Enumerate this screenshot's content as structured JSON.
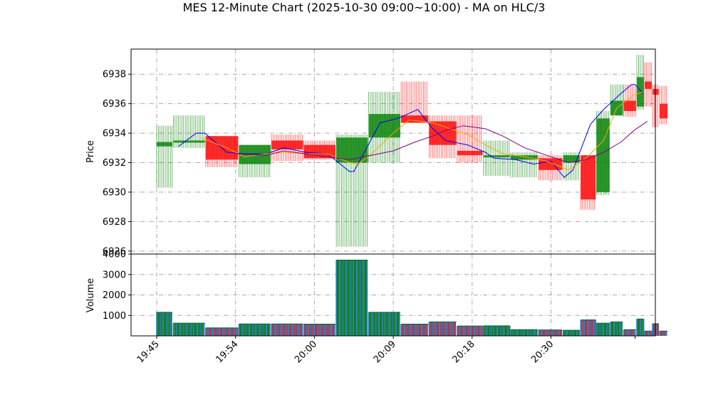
{
  "chart_data": {
    "type": "candlestick",
    "title": "MES 12-Minute Chart (2025-10-30 09:00~10:00) - MA on HLC/3",
    "price_panel": {
      "ylabel": "Price",
      "ylim": [
        6925.8,
        6939.7
      ],
      "yticks": [
        6926,
        6928,
        6930,
        6932,
        6934,
        6936,
        6938
      ],
      "grid": true
    },
    "volume_panel": {
      "ylabel": "Volume",
      "ylim": [
        0,
        4000
      ],
      "yticks": [
        1000,
        2000,
        3000,
        4000
      ],
      "grid": true
    },
    "x_ticks": [
      {
        "t": 0,
        "label": "19:45"
      },
      {
        "t": 9,
        "label": "19:54"
      },
      {
        "t": 18,
        "label": "20:00"
      },
      {
        "t": 27,
        "label": "20:09"
      },
      {
        "t": 36,
        "label": "20:18"
      },
      {
        "t": 45,
        "label": "20:30"
      }
    ],
    "xlim": [
      -3,
      57
    ],
    "up_color": "#008000",
    "down_color": "#ff0000",
    "ma_series": [
      {
        "color": "#0000ff",
        "values": [
          [
            2.5,
            6933.1
          ],
          [
            4.5,
            6934.0
          ],
          [
            5.5,
            6934.0
          ],
          [
            8,
            6932.7
          ],
          [
            10,
            6932.6
          ],
          [
            12.5,
            6932.6
          ],
          [
            14.5,
            6933.0
          ],
          [
            17,
            6932.7
          ],
          [
            19.5,
            6932.6
          ],
          [
            22,
            6931.4
          ],
          [
            22.5,
            6931.4
          ],
          [
            25.5,
            6934.7
          ],
          [
            27.5,
            6935.0
          ],
          [
            29.8,
            6935.6
          ],
          [
            31.5,
            6934.3
          ],
          [
            33,
            6933.5
          ],
          [
            35.5,
            6933.2
          ],
          [
            37.5,
            6932.7
          ],
          [
            38.5,
            6932.3
          ],
          [
            41,
            6932.2
          ],
          [
            43,
            6931.9
          ],
          [
            45,
            6932.1
          ],
          [
            46.5,
            6931.0
          ],
          [
            47.5,
            6931.5
          ],
          [
            49.5,
            6934.6
          ],
          [
            51,
            6935.6
          ],
          [
            53,
            6936.7
          ],
          [
            54.2,
            6937.3
          ],
          [
            54.6,
            6937.3
          ],
          [
            55.5,
            6936.7
          ]
        ]
      },
      {
        "color": "#ffa500",
        "values": [
          [
            5,
            6933.7
          ],
          [
            8,
            6933.0
          ],
          [
            10,
            6932.4
          ],
          [
            12.5,
            6932.6
          ],
          [
            14.5,
            6932.7
          ],
          [
            17,
            6932.6
          ],
          [
            19.5,
            6932.6
          ],
          [
            22,
            6932.0
          ],
          [
            23,
            6931.9
          ],
          [
            24.5,
            6932.6
          ],
          [
            27,
            6934.0
          ],
          [
            28.8,
            6934.9
          ],
          [
            31.5,
            6934.7
          ],
          [
            35.5,
            6933.9
          ],
          [
            37.5,
            6933.2
          ],
          [
            39.5,
            6932.6
          ],
          [
            42,
            6932.4
          ],
          [
            44.5,
            6932.1
          ],
          [
            47,
            6931.5
          ],
          [
            49,
            6932.3
          ],
          [
            51,
            6933.5
          ],
          [
            52.5,
            6935.7
          ],
          [
            54.5,
            6936.6
          ],
          [
            55.5,
            6936.8
          ]
        ]
      },
      {
        "color": "#800080",
        "values": [
          [
            9,
            6932.6
          ],
          [
            12.5,
            6932.5
          ],
          [
            14.5,
            6932.8
          ],
          [
            17,
            6932.6
          ],
          [
            19.5,
            6932.4
          ],
          [
            22,
            6932.2
          ],
          [
            24.5,
            6932.5
          ],
          [
            27,
            6932.8
          ],
          [
            29.5,
            6933.4
          ],
          [
            31.5,
            6933.8
          ],
          [
            33,
            6934.2
          ],
          [
            35,
            6934.5
          ],
          [
            37.5,
            6934.3
          ],
          [
            39.5,
            6933.8
          ],
          [
            42,
            6933.0
          ],
          [
            44.5,
            6932.5
          ],
          [
            47,
            6932.0
          ],
          [
            49,
            6932.2
          ],
          [
            51,
            6932.7
          ],
          [
            53,
            6933.4
          ],
          [
            54.5,
            6934.2
          ],
          [
            55.5,
            6934.6
          ],
          [
            56,
            6934.8
          ]
        ]
      }
    ],
    "candles": [
      {
        "t0": 0,
        "t1": 1.8,
        "o": 6933.1,
        "h": 6934.5,
        "l": 6930.3,
        "c": 6933.4,
        "v": 1150
      },
      {
        "t0": 1.9,
        "t1": 5.5,
        "o": 6933.5,
        "h": 6935.2,
        "l": 6933.0,
        "c": 6933.5,
        "v": 620
      },
      {
        "t0": 5.6,
        "t1": 9.3,
        "o": 6933.8,
        "h": 6933.8,
        "l": 6931.7,
        "c": 6932.2,
        "v": 390
      },
      {
        "t0": 9.4,
        "t1": 13,
        "o": 6931.9,
        "h": 6933.2,
        "l": 6931.0,
        "c": 6933.2,
        "v": 580
      },
      {
        "t0": 13.1,
        "t1": 16.7,
        "o": 6933.5,
        "h": 6933.9,
        "l": 6932.1,
        "c": 6932.9,
        "v": 580
      },
      {
        "t0": 16.8,
        "t1": 20.4,
        "o": 6933.2,
        "h": 6933.5,
        "l": 6932.2,
        "c": 6932.3,
        "v": 570
      },
      {
        "t0": 20.5,
        "t1": 24.1,
        "o": 6932.0,
        "h": 6933.9,
        "l": 6926.3,
        "c": 6933.7,
        "v": 3700
      },
      {
        "t0": 24.2,
        "t1": 27.8,
        "o": 6933.7,
        "h": 6936.8,
        "l": 6932.0,
        "c": 6935.3,
        "v": 1150
      },
      {
        "t0": 27.9,
        "t1": 31,
        "o": 6935.2,
        "h": 6937.5,
        "l": 6934.7,
        "c": 6934.7,
        "v": 570
      },
      {
        "t0": 31.1,
        "t1": 34.2,
        "o": 6934.8,
        "h": 6935.2,
        "l": 6932.3,
        "c": 6933.2,
        "v": 680
      },
      {
        "t0": 34.3,
        "t1": 37.2,
        "o": 6932.8,
        "h": 6935.2,
        "l": 6932.0,
        "c": 6932.5,
        "v": 480
      },
      {
        "t0": 37.3,
        "t1": 40.3,
        "o": 6932.5,
        "h": 6933.5,
        "l": 6931.1,
        "c": 6932.5,
        "v": 490
      },
      {
        "t0": 40.4,
        "t1": 43.5,
        "o": 6932.2,
        "h": 6932.7,
        "l": 6931.0,
        "c": 6932.5,
        "v": 300
      },
      {
        "t0": 43.6,
        "t1": 46.3,
        "o": 6932.3,
        "h": 6932.5,
        "l": 6930.8,
        "c": 6931.5,
        "v": 290
      },
      {
        "t0": 46.4,
        "t1": 48.3,
        "o": 6932.0,
        "h": 6932.7,
        "l": 6930.8,
        "c": 6932.5,
        "v": 270
      },
      {
        "t0": 48.4,
        "t1": 50.1,
        "o": 6932.5,
        "h": 6932.5,
        "l": 6928.8,
        "c": 6929.5,
        "v": 780
      },
      {
        "t0": 50.2,
        "t1": 51.7,
        "o": 6930.0,
        "h": 6935.5,
        "l": 6929.8,
        "c": 6935.0,
        "v": 620
      },
      {
        "t0": 51.8,
        "t1": 53.2,
        "o": 6935.2,
        "h": 6937.3,
        "l": 6935.2,
        "c": 6936.2,
        "v": 680
      },
      {
        "t0": 53.3,
        "t1": 54.7,
        "o": 6936.2,
        "h": 6937.3,
        "l": 6935.1,
        "c": 6935.5,
        "v": 300
      },
      {
        "t0": 54.8,
        "t1": 55.6,
        "o": 6935.8,
        "h": 6939.3,
        "l": 6935.6,
        "c": 6937.8,
        "v": 820
      },
      {
        "t0": 55.7,
        "t1": 56.5,
        "o": 6937.5,
        "h": 6938.8,
        "l": 6935.8,
        "c": 6937.0,
        "v": 230
      },
      {
        "t0": 56.6,
        "t1": 57.3,
        "o": 6937.0,
        "h": 6937.3,
        "l": 6934.4,
        "c": 6936.6,
        "v": 590
      },
      {
        "t0": 57.4,
        "t1": 58.3,
        "o": 6936.0,
        "h": 6937.2,
        "l": 6934.6,
        "c": 6935.0,
        "v": 230
      }
    ]
  }
}
